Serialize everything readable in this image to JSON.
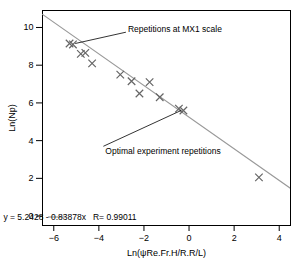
{
  "chart_data": {
    "type": "scatter",
    "xlabel": "Ln(ψRe.Fr.H/R.R/L)",
    "ylabel": "Ln(Np)",
    "xlim": [
      -6.5,
      4.5
    ],
    "ylim": [
      -0.5,
      10.9
    ],
    "xticks": [
      -6,
      -4,
      -2,
      0,
      2,
      4
    ],
    "yticks": [
      0,
      2,
      4,
      6,
      8,
      10
    ],
    "legend": "lower left",
    "series": [
      {
        "name": "y = 5.2428 - 0.83878x   R= 0.99011",
        "type": "line",
        "color": "#999999",
        "x": [
          -6.5,
          4.5
        ],
        "values": [
          10.69487,
          1.46829
        ]
      },
      {
        "type": "scatter",
        "marker": "x",
        "color": "#666666",
        "x": [
          -5.3,
          -5.15,
          -4.8,
          -4.6,
          -4.3,
          -3.05,
          -2.55,
          -2.2,
          -1.75,
          -1.3,
          -0.45,
          -0.25,
          3.1
        ],
        "values": [
          9.15,
          9.1,
          8.6,
          8.65,
          8.1,
          7.5,
          7.15,
          6.5,
          7.1,
          6.3,
          5.7,
          5.6,
          2.05
        ]
      }
    ],
    "annotations": [
      {
        "text": "Repetitions at MX1 scale",
        "xy": [
          -5.05,
          9.15
        ],
        "xytext": [
          -2.8,
          9.75
        ]
      },
      {
        "text": "Optimal experiment repetitions",
        "xy": [
          -0.35,
          5.6
        ],
        "xytext": [
          -3.8,
          3.7
        ]
      }
    ]
  }
}
